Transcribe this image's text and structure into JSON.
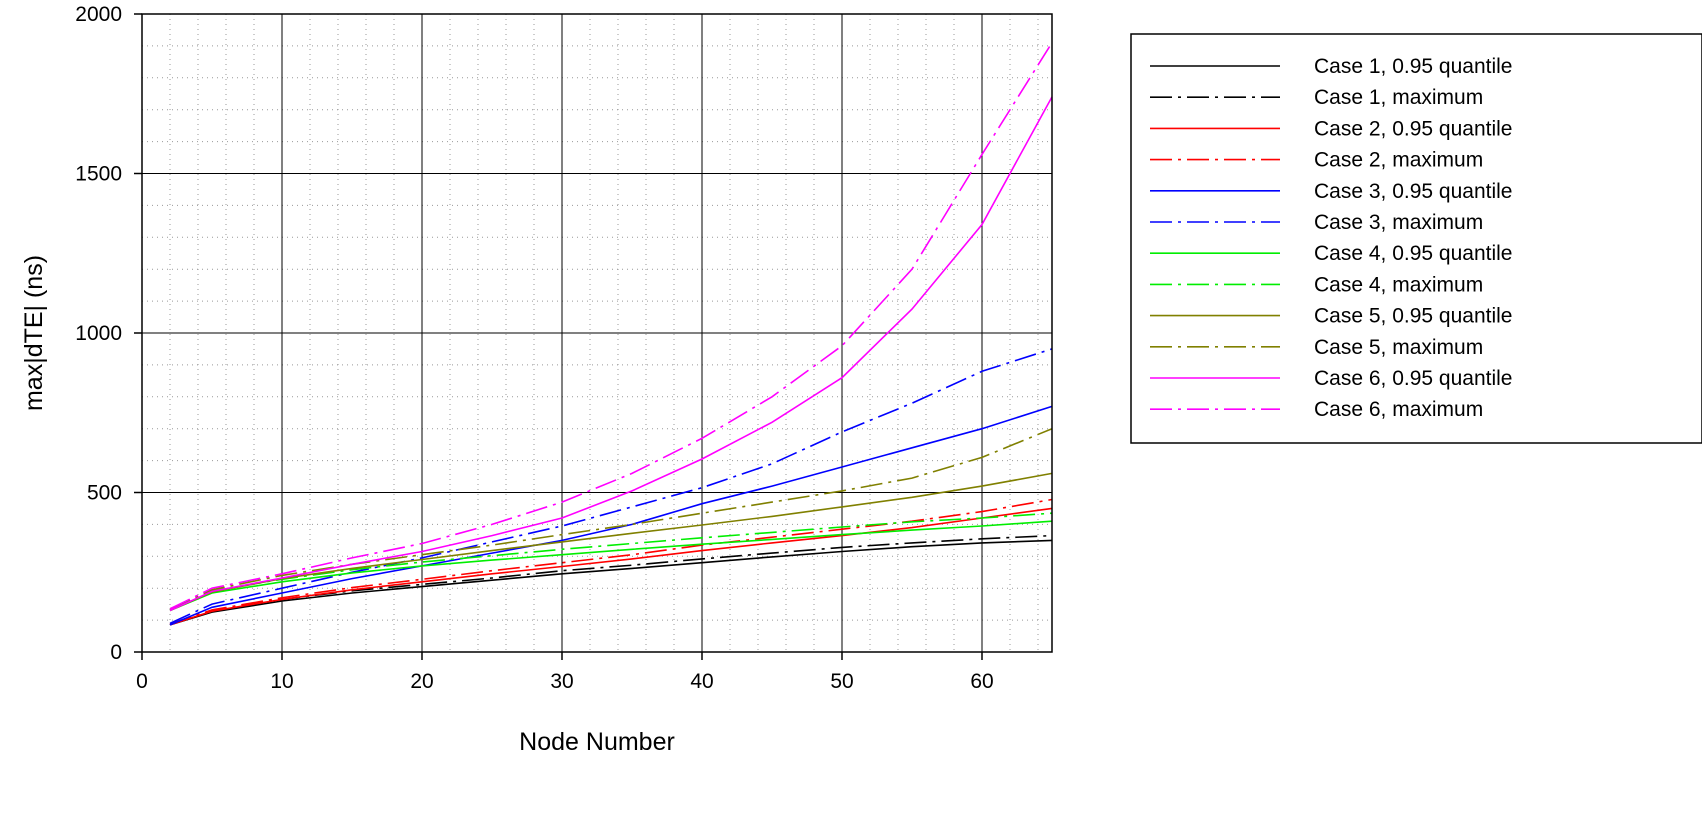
{
  "chart_data": {
    "type": "line",
    "title": "",
    "xlabel": "Node Number",
    "ylabel": "max|dTE| (ns)",
    "xlim": [
      0,
      65
    ],
    "ylim": [
      0,
      2000
    ],
    "x_ticks": [
      0,
      10,
      20,
      30,
      40,
      50,
      60
    ],
    "y_ticks": [
      0,
      500,
      1000,
      1500,
      2000
    ],
    "x_tick_labels": [
      "0",
      "10",
      "20",
      "30",
      "40",
      "50",
      "60"
    ],
    "y_tick_labels": [
      "0",
      "500",
      "1000",
      "1500",
      "2000"
    ],
    "grid": true,
    "minor_grid": true,
    "legend_position": "outside-right",
    "x": [
      2,
      5,
      10,
      15,
      20,
      25,
      30,
      35,
      40,
      45,
      50,
      55,
      60,
      65
    ],
    "series": [
      {
        "name": "Case 1, 0.95 quantile",
        "color": "#000000",
        "style": "solid",
        "values": [
          85,
          125,
          160,
          185,
          205,
          225,
          245,
          262,
          280,
          298,
          315,
          330,
          342,
          350
        ]
      },
      {
        "name": "Case 1, maximum",
        "color": "#000000",
        "style": "dashdot",
        "values": [
          88,
          130,
          165,
          192,
          212,
          232,
          255,
          272,
          292,
          310,
          328,
          342,
          355,
          365
        ]
      },
      {
        "name": "Case 2, 0.95 quantile",
        "color": "#ff0000",
        "style": "solid",
        "values": [
          85,
          128,
          165,
          195,
          220,
          245,
          268,
          292,
          318,
          342,
          365,
          390,
          420,
          450
        ]
      },
      {
        "name": "Case 2, maximum",
        "color": "#ff0000",
        "style": "dashdot",
        "values": [
          88,
          132,
          170,
          202,
          228,
          255,
          280,
          305,
          335,
          360,
          385,
          410,
          440,
          478
        ]
      },
      {
        "name": "Case 3, 0.95 quantile",
        "color": "#0000ff",
        "style": "solid",
        "values": [
          85,
          140,
          185,
          230,
          270,
          310,
          350,
          400,
          465,
          520,
          580,
          640,
          700,
          770
        ]
      },
      {
        "name": "Case 3, maximum",
        "color": "#0000ff",
        "style": "dashdot",
        "values": [
          90,
          150,
          200,
          250,
          295,
          345,
          395,
          455,
          515,
          590,
          690,
          780,
          880,
          950
        ]
      },
      {
        "name": "Case 4, 0.95 quantile",
        "color": "#00ee00",
        "style": "solid",
        "values": [
          130,
          185,
          220,
          248,
          270,
          288,
          305,
          322,
          338,
          353,
          368,
          382,
          395,
          410
        ]
      },
      {
        "name": "Case 4, maximum",
        "color": "#00ee00",
        "style": "dashdot",
        "values": [
          133,
          192,
          228,
          258,
          282,
          302,
          322,
          340,
          358,
          375,
          392,
          408,
          420,
          435
        ]
      },
      {
        "name": "Case 5, 0.95 quantile",
        "color": "#808000",
        "style": "solid",
        "values": [
          130,
          188,
          230,
          262,
          290,
          318,
          345,
          372,
          398,
          425,
          455,
          485,
          520,
          560
        ]
      },
      {
        "name": "Case 5, maximum",
        "color": "#808000",
        "style": "dashdot",
        "values": [
          135,
          195,
          240,
          275,
          305,
          335,
          368,
          400,
          435,
          470,
          505,
          545,
          610,
          700
        ]
      },
      {
        "name": "Case 6, 0.95 quantile",
        "color": "#ff00ff",
        "style": "solid",
        "values": [
          130,
          190,
          232,
          275,
          315,
          365,
          420,
          505,
          605,
          720,
          860,
          1075,
          1340,
          1740
        ]
      },
      {
        "name": "Case 6, maximum",
        "color": "#ff00ff",
        "style": "dashdot",
        "values": [
          135,
          200,
          245,
          295,
          340,
          400,
          470,
          560,
          670,
          800,
          960,
          1200,
          1560,
          1910
        ]
      }
    ]
  }
}
